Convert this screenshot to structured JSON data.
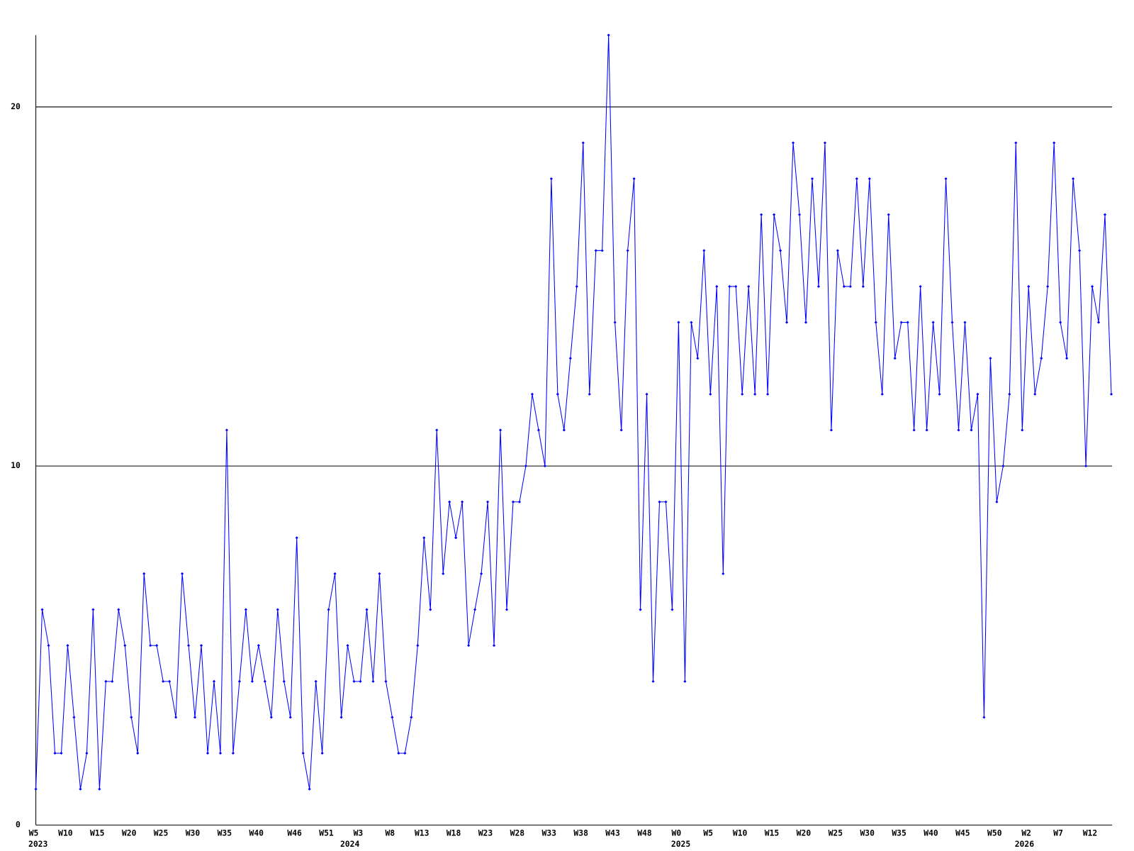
{
  "chart_data": {
    "type": "line",
    "categories": [
      "W5",
      null,
      null,
      null,
      null,
      "W10",
      null,
      null,
      null,
      null,
      "W15",
      null,
      null,
      null,
      null,
      "W20",
      null,
      null,
      null,
      null,
      "W25",
      null,
      null,
      null,
      null,
      "W30",
      null,
      null,
      null,
      null,
      "W35",
      null,
      null,
      null,
      null,
      "W40",
      null,
      null,
      null,
      null,
      null,
      "W46",
      null,
      null,
      null,
      null,
      "W51",
      null,
      null,
      null,
      null,
      "W3",
      null,
      null,
      null,
      null,
      "W8",
      null,
      null,
      null,
      null,
      "W13",
      null,
      null,
      null,
      null,
      "W18",
      null,
      null,
      null,
      null,
      "W23",
      null,
      null,
      null,
      null,
      "W28",
      null,
      null,
      null,
      null,
      "W33",
      null,
      null,
      null,
      null,
      "W38",
      null,
      null,
      null,
      null,
      "W43",
      null,
      null,
      null,
      null,
      "W48",
      null,
      null,
      null,
      null,
      "W0",
      null,
      null,
      null,
      null,
      "W5",
      null,
      null,
      null,
      null,
      "W10",
      null,
      null,
      null,
      null,
      "W15",
      null,
      null,
      null,
      null,
      "W20",
      null,
      null,
      null,
      null,
      "W25",
      null,
      null,
      null,
      null,
      "W30",
      null,
      null,
      null,
      null,
      "W35",
      null,
      null,
      null,
      null,
      "W40",
      null,
      null,
      null,
      null,
      "W45",
      null,
      null,
      null,
      null,
      "W50",
      null,
      null,
      null,
      null,
      "W2",
      null,
      null,
      null,
      null,
      "W7",
      null,
      null,
      null,
      null,
      "W12",
      null,
      null,
      null
    ],
    "year_ticks": [
      {
        "value": 0,
        "label": "2023"
      },
      {
        "value": 49,
        "label": "2024"
      },
      {
        "value": 101,
        "label": "2025"
      },
      {
        "value": 155,
        "label": "2026"
      }
    ],
    "values": [
      1,
      6,
      5,
      2,
      2,
      5,
      3,
      1,
      2,
      6,
      1,
      4,
      4,
      6,
      5,
      3,
      2,
      7,
      5,
      5,
      4,
      4,
      3,
      7,
      5,
      3,
      5,
      2,
      4,
      2,
      11,
      2,
      4,
      6,
      4,
      5,
      4,
      3,
      6,
      4,
      3,
      8,
      2,
      1,
      4,
      2,
      6,
      7,
      3,
      5,
      4,
      4,
      6,
      4,
      7,
      4,
      3,
      2,
      2,
      3,
      5,
      8,
      6,
      11,
      7,
      9,
      8,
      9,
      5,
      6,
      7,
      9,
      5,
      11,
      6,
      9,
      9,
      10,
      12,
      11,
      10,
      18,
      12,
      11,
      13,
      15,
      19,
      12,
      16,
      16,
      22,
      14,
      11,
      16,
      18,
      6,
      12,
      4,
      9,
      9,
      6,
      14,
      4,
      14,
      13,
      16,
      12,
      15,
      7,
      15,
      15,
      12,
      15,
      12,
      17,
      12,
      17,
      16,
      14,
      19,
      17,
      14,
      18,
      15,
      19,
      11,
      16,
      15,
      15,
      18,
      15,
      18,
      14,
      12,
      17,
      13,
      14,
      14,
      11,
      15,
      11,
      14,
      12,
      18,
      14,
      11,
      14,
      11,
      12,
      3,
      13,
      9,
      10,
      12,
      19,
      11,
      15,
      12,
      13,
      15,
      19,
      14,
      13,
      18,
      16,
      10,
      15,
      14,
      17,
      12
    ],
    "color": "#0000ff",
    "ylim": [
      0,
      22
    ],
    "yticks": [
      0,
      10,
      20
    ],
    "grid": true
  }
}
